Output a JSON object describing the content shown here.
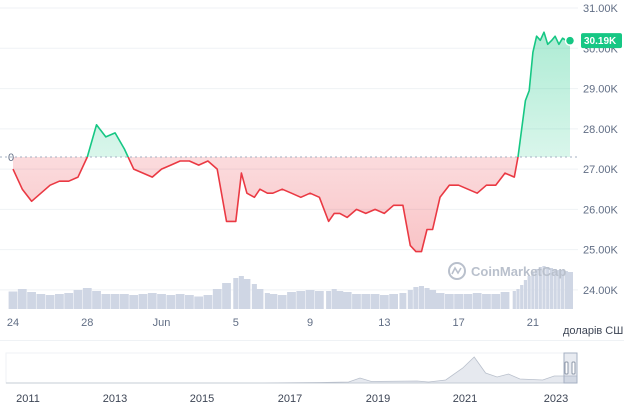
{
  "chart_data": {
    "type": "line",
    "title": "",
    "xlabel": "",
    "ylabel": "",
    "currency_label": "доларів СШ",
    "watermark": "CoinMarketCap",
    "current_price_label": "30.19K",
    "baseline_label": "0",
    "baseline_value": 27300,
    "ylim": [
      23500,
      31200
    ],
    "y_ticks": [
      {
        "value": 24000,
        "label": "24.00K"
      },
      {
        "value": 25000,
        "label": "25.00K"
      },
      {
        "value": 26000,
        "label": "26.00K"
      },
      {
        "value": 27000,
        "label": "27.00K"
      },
      {
        "value": 28000,
        "label": "28.00K"
      },
      {
        "value": 29000,
        "label": "29.00K"
      },
      {
        "value": 30000,
        "label": "30.00K"
      },
      {
        "value": 31000,
        "label": "31.00K"
      }
    ],
    "x_ticks": [
      {
        "day": 0,
        "label": "24"
      },
      {
        "day": 4,
        "label": "28"
      },
      {
        "day": 8,
        "label": "Jun"
      },
      {
        "day": 12,
        "label": "5"
      },
      {
        "day": 16,
        "label": "9"
      },
      {
        "day": 20,
        "label": "13"
      },
      {
        "day": 24,
        "label": "17"
      },
      {
        "day": 28,
        "label": "21"
      }
    ],
    "series": [
      {
        "x": [
          0,
          0.5,
          1,
          1.5,
          2,
          2.5,
          3,
          3.5,
          4,
          4.5,
          5,
          5.5,
          6,
          6.5,
          7,
          7.5,
          8,
          8.5,
          9,
          9.5,
          10,
          10.5,
          11,
          11.5,
          12,
          12.3,
          12.6,
          13,
          13.3,
          13.7,
          14,
          14.5,
          15,
          15.5,
          16,
          16.5,
          17,
          17.3,
          17.6,
          18,
          18.5,
          19,
          19.5,
          20,
          20.5,
          21,
          21.4,
          21.7,
          22,
          22.3,
          22.6,
          23,
          23.5,
          24,
          24.5,
          25,
          25.5,
          26,
          26.5,
          27,
          27.2,
          27.4,
          27.6,
          27.8,
          28,
          28.2,
          28.4,
          28.6,
          28.8,
          29,
          29.2,
          29.4,
          29.6,
          29.8,
          30
        ],
        "values": [
          27000,
          26500,
          26200,
          26400,
          26600,
          26700,
          26700,
          26800,
          27300,
          28100,
          27800,
          27900,
          27500,
          27000,
          26900,
          26800,
          27000,
          27100,
          27200,
          27200,
          27100,
          27200,
          27000,
          25700,
          25700,
          26900,
          26400,
          26300,
          26500,
          26400,
          26400,
          26500,
          26400,
          26300,
          26400,
          26300,
          25700,
          25900,
          25900,
          25800,
          26000,
          25900,
          26000,
          25900,
          26100,
          26100,
          25100,
          24950,
          24950,
          25500,
          25500,
          26300,
          26600,
          26600,
          26500,
          26400,
          26600,
          26600,
          26900,
          26800,
          27300,
          28000,
          28700,
          28950,
          29900,
          30300,
          30200,
          30400,
          30100,
          30190,
          30300,
          30100,
          30250,
          30190,
          30190
        ],
        "volume": [
          0.35,
          0.4,
          0.34,
          0.3,
          0.28,
          0.3,
          0.32,
          0.38,
          0.42,
          0.36,
          0.3,
          0.3,
          0.3,
          0.28,
          0.3,
          0.32,
          0.3,
          0.28,
          0.3,
          0.28,
          0.25,
          0.28,
          0.4,
          0.52,
          0.62,
          0.66,
          0.6,
          0.5,
          0.4,
          0.32,
          0.3,
          0.28,
          0.34,
          0.36,
          0.38,
          0.36,
          0.36,
          0.4,
          0.36,
          0.34,
          0.3,
          0.3,
          0.3,
          0.28,
          0.3,
          0.32,
          0.38,
          0.44,
          0.46,
          0.42,
          0.38,
          0.32,
          0.3,
          0.3,
          0.3,
          0.32,
          0.3,
          0.3,
          0.34,
          0.36,
          0.4,
          0.48,
          0.58,
          0.66,
          0.74,
          0.8,
          0.84,
          0.86,
          0.84,
          0.82,
          0.8,
          0.78,
          0.78,
          0.76,
          0.74
        ]
      }
    ],
    "navigator": {
      "x_ticks": [
        "2011",
        "2013",
        "2015",
        "2017",
        "2019",
        "2021",
        "2023"
      ]
    },
    "colors": {
      "up": "#16c784",
      "down": "#ea3943",
      "volume": "#cfd6e4",
      "grid": "#eff2f5",
      "baseline": "#a6b0c3"
    },
    "grid": true
  }
}
